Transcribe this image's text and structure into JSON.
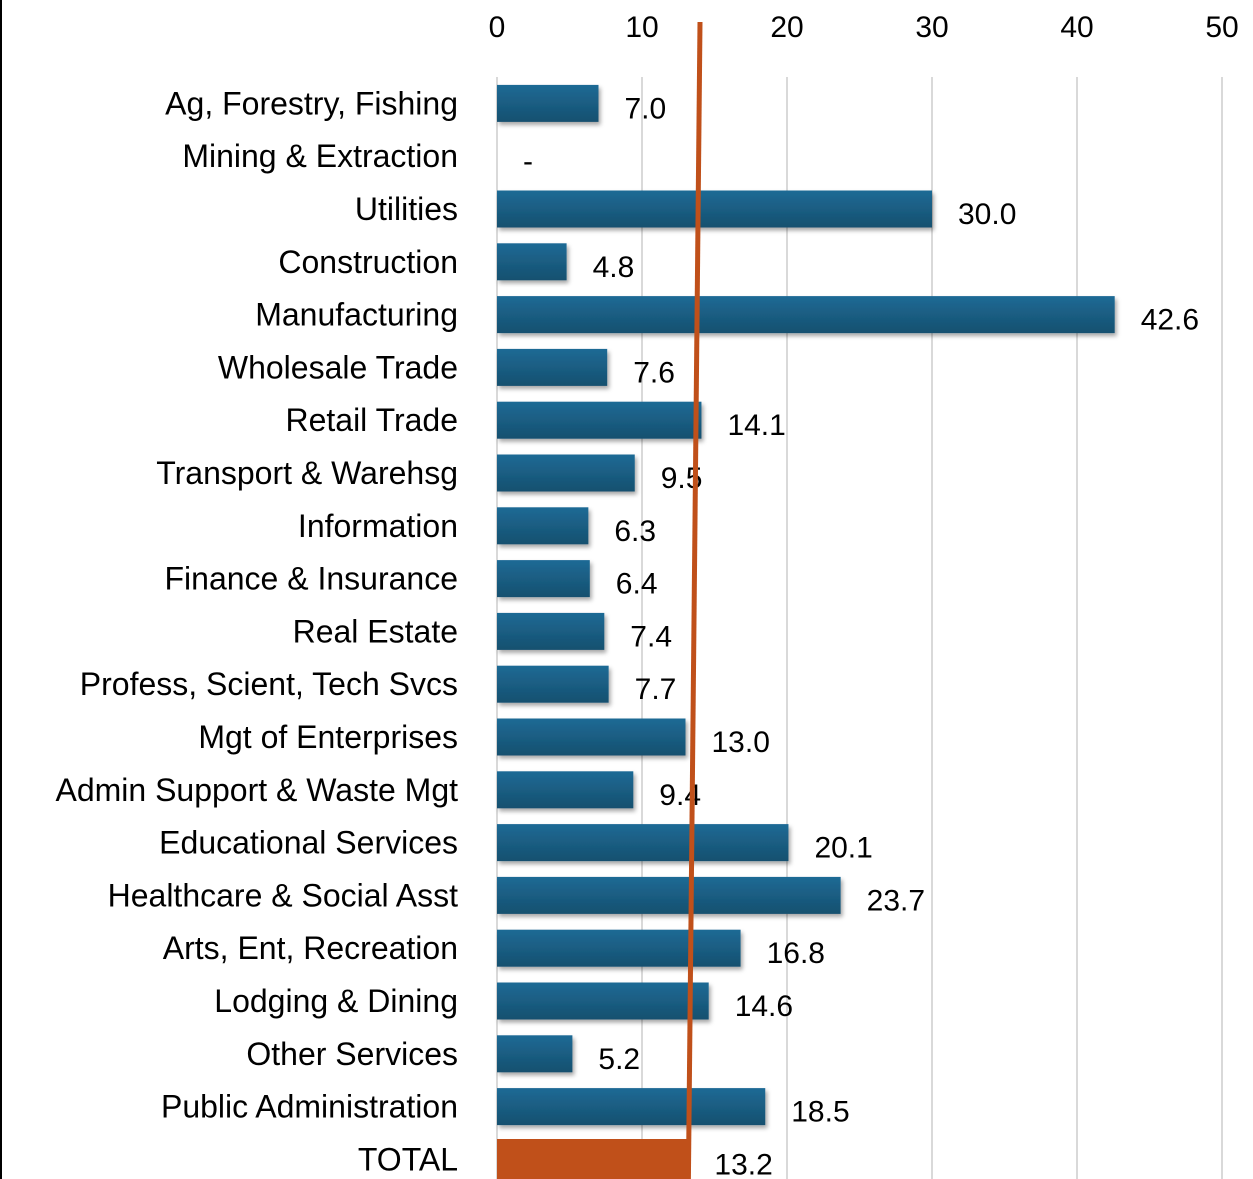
{
  "chart_data": {
    "type": "bar",
    "orientation": "horizontal",
    "categories": [
      "Ag, Forestry, Fishing",
      "Mining & Extraction",
      "Utilities",
      "Construction",
      "Manufacturing",
      "Wholesale Trade",
      "Retail Trade",
      "Transport & Warehsg",
      "Information",
      "Finance & Insurance",
      "Real Estate",
      "Profess, Scient, Tech Svcs",
      "Mgt of Enterprises",
      "Admin Support & Waste Mgt",
      "Educational Services",
      "Healthcare & Social Asst",
      "Arts, Ent, Recreation",
      "Lodging & Dining",
      "Other Services",
      "Public Administration",
      "TOTAL"
    ],
    "values": [
      7.0,
      null,
      30.0,
      4.8,
      42.6,
      7.6,
      14.1,
      9.5,
      6.3,
      6.4,
      7.4,
      7.7,
      13.0,
      9.4,
      20.1,
      23.7,
      16.8,
      14.6,
      5.2,
      18.5,
      13.2
    ],
    "data_labels": [
      "7.0",
      "-",
      "30.0",
      "4.8",
      "42.6",
      "7.6",
      "14.1",
      "9.5",
      "6.3",
      "6.4",
      "7.4",
      "7.7",
      "13.0",
      "9.4",
      "20.1",
      "23.7",
      "16.8",
      "14.6",
      "5.2",
      "18.5",
      "13.2"
    ],
    "xlim": [
      0,
      50
    ],
    "xticks": [
      0,
      10,
      20,
      30,
      40,
      50
    ],
    "x_axis_position": "top",
    "grid": true,
    "reference_line": {
      "x_start": 14.0,
      "x_end": 13.2
    },
    "colors": {
      "bar": "#1b5e86",
      "total_bar": "#c0501a",
      "reference_line": "#c0501a",
      "grid": "#d9d9d9"
    },
    "title": "",
    "xlabel": "",
    "ylabel": ""
  }
}
